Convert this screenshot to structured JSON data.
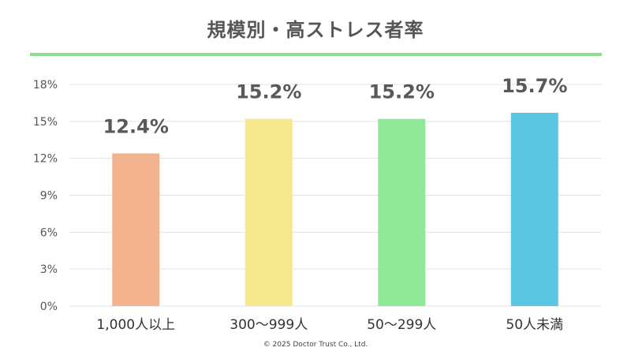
{
  "title": "規模別・高ストレス者率",
  "copyright": "©  2025 Doctor Trust Co., Ltd.",
  "colors": {
    "title_rule": "#90DE90",
    "grid": "#E3E3E3",
    "axis_text": "#555555",
    "value_text": "#595959"
  },
  "chart_data": {
    "type": "bar",
    "categories": [
      "1,000人以上",
      "300～999人",
      "50～299人",
      "50人未満"
    ],
    "values": [
      12.4,
      15.2,
      15.2,
      15.7
    ],
    "value_labels": [
      "12.4%",
      "15.2%",
      "15.2%",
      "15.7%"
    ],
    "bar_colors": [
      "#F3B38E",
      "#F6E98D",
      "#90E998",
      "#5DC6E3"
    ],
    "ylim": [
      0,
      18
    ],
    "yticks": [
      0,
      3,
      6,
      9,
      12,
      15,
      18
    ],
    "ytick_labels": [
      "0%",
      "3%",
      "6%",
      "9%",
      "12%",
      "15%",
      "18%"
    ],
    "grid": true,
    "xlabel": "",
    "ylabel": ""
  }
}
